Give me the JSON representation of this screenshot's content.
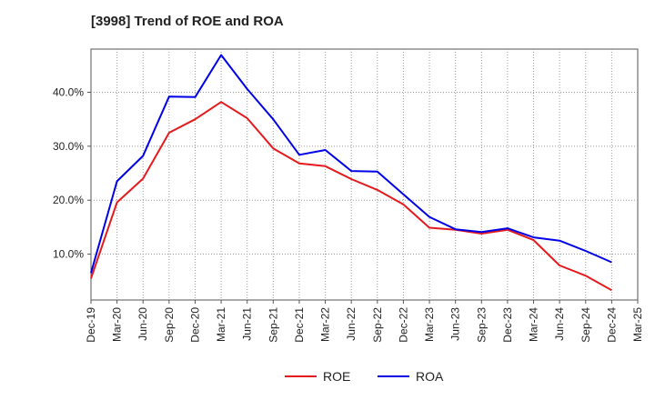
{
  "chart_data": {
    "type": "line",
    "title": "[3998]  Trend of ROE and ROA",
    "xlabel": "",
    "ylabel": "",
    "x": [
      "Dec-19",
      "Mar-20",
      "Jun-20",
      "Sep-20",
      "Dec-20",
      "Mar-21",
      "Jun-21",
      "Sep-21",
      "Dec-21",
      "Mar-22",
      "Jun-22",
      "Sep-22",
      "Dec-22",
      "Mar-23",
      "Jun-23",
      "Sep-23",
      "Dec-23",
      "Mar-24",
      "Jun-24",
      "Sep-24",
      "Dec-24",
      "Mar-25"
    ],
    "ylim": [
      1.5,
      48.0
    ],
    "yticks": [
      10.0,
      20.0,
      30.0,
      40.0
    ],
    "ytick_labels": [
      "10.0%",
      "20.0%",
      "30.0%",
      "40.0%"
    ],
    "grid": true,
    "legend_position": "bottom-center",
    "series": [
      {
        "name": "ROE",
        "color": "#e41a1c",
        "values": [
          5.5,
          19.6,
          24.0,
          32.5,
          35.0,
          38.2,
          35.2,
          29.6,
          26.8,
          26.3,
          23.9,
          21.9,
          19.2,
          14.9,
          14.5,
          13.8,
          14.5,
          12.6,
          7.9,
          6.0,
          3.3,
          null
        ]
      },
      {
        "name": "ROA",
        "color": "#0000e6",
        "values": [
          6.5,
          23.5,
          28.2,
          39.2,
          39.1,
          46.9,
          40.6,
          35.0,
          28.4,
          29.3,
          25.4,
          25.3,
          21.1,
          16.9,
          14.6,
          14.1,
          14.8,
          13.1,
          12.5,
          10.6,
          8.5,
          null
        ]
      }
    ]
  }
}
